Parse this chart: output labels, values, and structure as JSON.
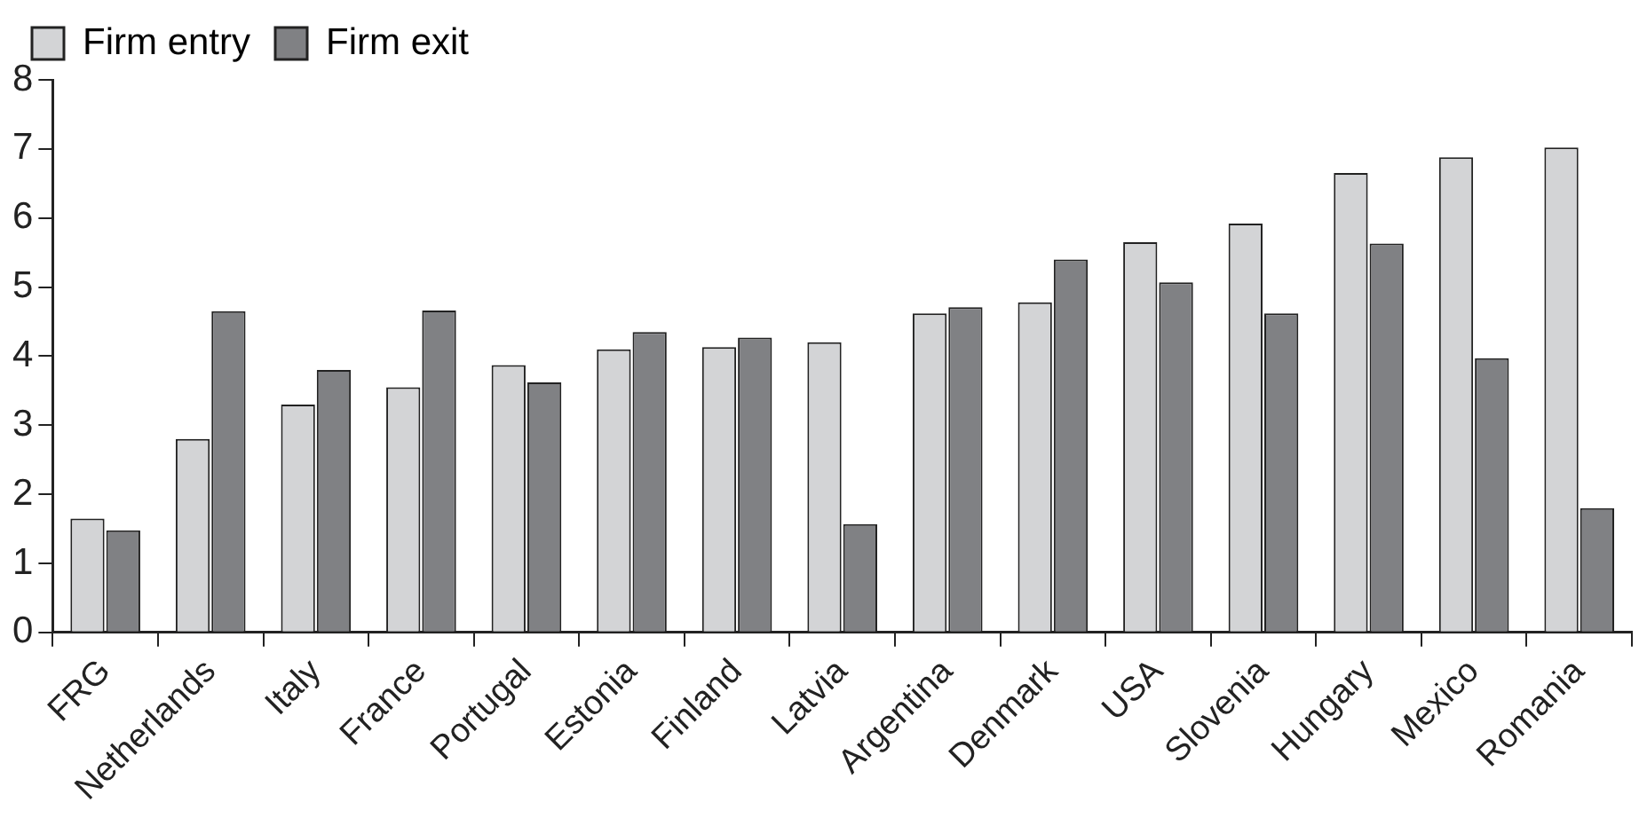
{
  "chart_data": {
    "type": "bar",
    "categories": [
      "FRG",
      "Netherlands",
      "Italy",
      "France",
      "Portugal",
      "Estonia",
      "Finland",
      "Latvia",
      "Argentina",
      "Denmark",
      "USA",
      "Slovenia",
      "Hungary",
      "Mexico",
      "Romania"
    ],
    "series": [
      {
        "name": "Firm entry",
        "color": "#d3d4d6",
        "values": [
          1.65,
          2.8,
          3.3,
          3.55,
          3.87,
          4.1,
          4.13,
          4.2,
          4.62,
          4.78,
          5.65,
          5.92,
          6.65,
          6.88,
          7.02
        ]
      },
      {
        "name": "Firm exit",
        "color": "#808184",
        "values": [
          1.48,
          4.65,
          3.8,
          4.66,
          3.62,
          4.35,
          4.27,
          1.57,
          4.71,
          5.4,
          5.07,
          4.62,
          5.63,
          3.97,
          1.8
        ]
      }
    ],
    "ylim": [
      0,
      8
    ],
    "yticks": [
      0,
      1,
      2,
      3,
      4,
      5,
      6,
      7,
      8
    ],
    "grid": false,
    "legend": "top"
  }
}
